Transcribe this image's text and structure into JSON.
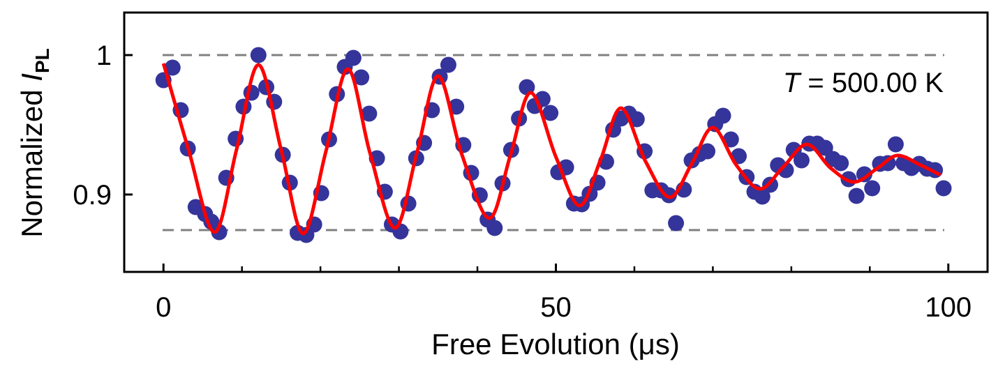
{
  "chart_data": {
    "type": "scatter",
    "xlabel": "Free Evolution (μs)",
    "ylabel": {
      "text": "Normalized ",
      "symbol": "I",
      "subscript": "PL"
    },
    "annotation": {
      "symbol": "T",
      "text": " = 500.00 K"
    },
    "xlim": [
      -5,
      105
    ],
    "ylim": [
      0.8445,
      1.0305
    ],
    "xticks": [
      0,
      50,
      100
    ],
    "xminor_ticks": [
      10,
      20,
      30,
      40,
      60,
      70,
      80,
      90
    ],
    "yticks": [
      0.9,
      1
    ],
    "reference_lines": {
      "values": [
        1.0,
        0.8745
      ],
      "color": "#808080"
    },
    "series": [
      {
        "color": "#34349a",
        "x": [
          0,
          1.16,
          2.2,
          3.1,
          4.1,
          5.3,
          6.1,
          7.1,
          8.0,
          9.2,
          10.2,
          11.2,
          12.1,
          13.1,
          14.1,
          15.2,
          16.1,
          17.1,
          18.2,
          19.2,
          20.1,
          21.1,
          22.1,
          23.1,
          24.2,
          25.2,
          26.2,
          27.2,
          28.2,
          29.1,
          30.2,
          31.2,
          32.2,
          33.2,
          34.2,
          35.2,
          36.3,
          37.3,
          38.2,
          39.2,
          40.3,
          41.3,
          42.2,
          43.2,
          44.3,
          45.3,
          46.3,
          47.3,
          48.3,
          49.3,
          50.3,
          51.3,
          52.3,
          53.3,
          54.3,
          55.3,
          56.4,
          57.3,
          58.3,
          59.3,
          60.3,
          61.3,
          62.3,
          63.4,
          64.4,
          65.3,
          66.3,
          67.3,
          68.3,
          69.3,
          70.3,
          71.3,
          72.3,
          73.3,
          74.3,
          75.3,
          76.3,
          77.3,
          78.3,
          79.3,
          80.3,
          81.3,
          82.3,
          83.3,
          84.3,
          85.3,
          86.3,
          87.3,
          88.3,
          89.3,
          90.3,
          91.3,
          92.3,
          93.3,
          94.3,
          95.3,
          96.3,
          97.3,
          98.3,
          99.4
        ],
        "values": [
          0.982,
          0.991,
          0.9605,
          0.933,
          0.891,
          0.886,
          0.8805,
          0.873,
          0.912,
          0.94,
          0.963,
          0.973,
          1.0,
          0.977,
          0.9665,
          0.9285,
          0.9085,
          0.8725,
          0.871,
          0.8785,
          0.901,
          0.9395,
          0.972,
          0.9915,
          0.998,
          0.984,
          0.958,
          0.926,
          0.902,
          0.8785,
          0.8735,
          0.8935,
          0.926,
          0.937,
          0.9605,
          0.9845,
          0.993,
          0.963,
          0.9355,
          0.9155,
          0.8995,
          0.882,
          0.876,
          0.908,
          0.932,
          0.9545,
          0.977,
          0.9635,
          0.9685,
          0.9585,
          0.916,
          0.9195,
          0.8935,
          0.893,
          0.9005,
          0.9085,
          0.9235,
          0.9465,
          0.9545,
          0.958,
          0.954,
          0.931,
          0.903,
          0.903,
          0.8995,
          0.8795,
          0.9035,
          0.9245,
          0.929,
          0.931,
          0.9505,
          0.9565,
          0.9395,
          0.9275,
          0.9125,
          0.902,
          0.8985,
          0.907,
          0.921,
          0.9175,
          0.932,
          0.9245,
          0.9365,
          0.9365,
          0.9335,
          0.9255,
          0.9225,
          0.911,
          0.899,
          0.9145,
          0.9045,
          0.922,
          0.9225,
          0.936,
          0.9225,
          0.919,
          0.922,
          0.9185,
          0.9175,
          0.9045
        ]
      },
      {
        "color": "#ff0000",
        "x": [
          0,
          3.2,
          6.5,
          9.3,
          12.1,
          15,
          17.8,
          20.7,
          23.5,
          26.3,
          29.5,
          32.3,
          35,
          38,
          41.5,
          44.2,
          46.8,
          50,
          53,
          55.7,
          58.3,
          61.4,
          64.5,
          67.3,
          70,
          73,
          76,
          79,
          82,
          85,
          88,
          91,
          93.5,
          96.5,
          99
        ],
        "values": [
          0.994,
          0.932,
          0.873,
          0.932,
          0.993,
          0.932,
          0.872,
          0.931,
          0.99,
          0.93,
          0.876,
          0.93,
          0.985,
          0.929,
          0.883,
          0.928,
          0.973,
          0.927,
          0.892,
          0.925,
          0.962,
          0.924,
          0.898,
          0.922,
          0.948,
          0.921,
          0.904,
          0.92,
          0.936,
          0.919,
          0.909,
          0.919,
          0.928,
          0.921,
          0.914
        ]
      }
    ]
  }
}
